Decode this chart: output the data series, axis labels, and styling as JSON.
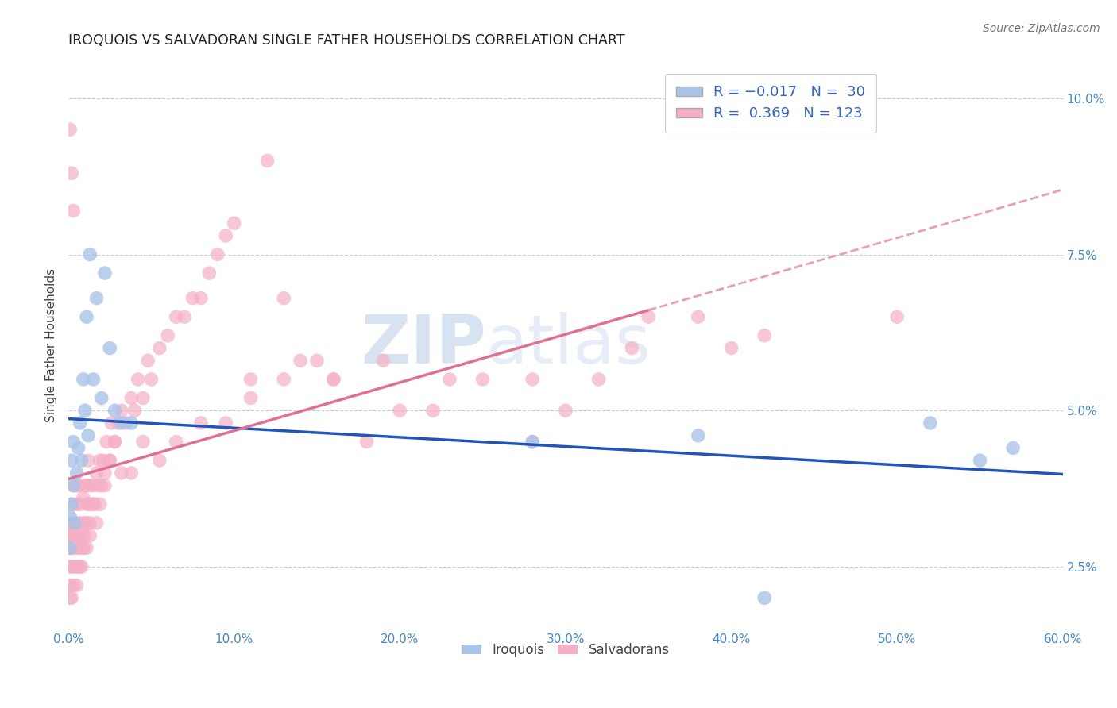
{
  "title": "IROQUOIS VS SALVADORAN SINGLE FATHER HOUSEHOLDS CORRELATION CHART",
  "source": "Source: ZipAtlas.com",
  "ylabel": "Single Father Households",
  "xlim": [
    0.0,
    0.6
  ],
  "ylim": [
    0.015,
    0.106
  ],
  "watermark_zip": "ZIP",
  "watermark_atlas": "atlas",
  "legend_line1": "R = -0.017   N =  30",
  "legend_line2": "R =  0.369   N = 123",
  "color_iroquois": "#a8c4e8",
  "color_salvadoran": "#f5b0c5",
  "color_iroquois_line": "#2255bb",
  "color_salvadoran_solid": "#e07090",
  "color_salvadoran_dashed": "#e8a0b0",
  "background_color": "#ffffff",
  "grid_color": "#cccccc",
  "tick_color": "#4488cc",
  "iroquois_x": [
    0.001,
    0.001,
    0.002,
    0.002,
    0.003,
    0.003,
    0.004,
    0.005,
    0.006,
    0.007,
    0.008,
    0.009,
    0.01,
    0.011,
    0.012,
    0.013,
    0.015,
    0.017,
    0.02,
    0.022,
    0.025,
    0.028,
    0.032,
    0.038,
    0.28,
    0.38,
    0.42,
    0.52,
    0.55,
    0.57
  ],
  "iroquois_y": [
    0.033,
    0.028,
    0.035,
    0.042,
    0.038,
    0.045,
    0.032,
    0.04,
    0.044,
    0.048,
    0.042,
    0.055,
    0.05,
    0.065,
    0.046,
    0.075,
    0.055,
    0.068,
    0.052,
    0.072,
    0.06,
    0.05,
    0.048,
    0.048,
    0.045,
    0.046,
    0.02,
    0.048,
    0.042,
    0.044
  ],
  "salvadoran_x": [
    0.001,
    0.001,
    0.001,
    0.001,
    0.001,
    0.002,
    0.002,
    0.002,
    0.003,
    0.003,
    0.003,
    0.004,
    0.004,
    0.005,
    0.005,
    0.005,
    0.006,
    0.006,
    0.007,
    0.007,
    0.008,
    0.008,
    0.009,
    0.009,
    0.01,
    0.01,
    0.011,
    0.011,
    0.012,
    0.012,
    0.013,
    0.013,
    0.014,
    0.015,
    0.016,
    0.017,
    0.018,
    0.019,
    0.02,
    0.021,
    0.022,
    0.023,
    0.025,
    0.026,
    0.028,
    0.03,
    0.032,
    0.035,
    0.038,
    0.04,
    0.042,
    0.045,
    0.048,
    0.05,
    0.055,
    0.06,
    0.065,
    0.07,
    0.075,
    0.08,
    0.085,
    0.09,
    0.095,
    0.1,
    0.11,
    0.12,
    0.13,
    0.14,
    0.15,
    0.16,
    0.18,
    0.2,
    0.22,
    0.25,
    0.28,
    0.3,
    0.32,
    0.35,
    0.38,
    0.4,
    0.001,
    0.001,
    0.002,
    0.002,
    0.003,
    0.003,
    0.004,
    0.005,
    0.005,
    0.006,
    0.006,
    0.007,
    0.008,
    0.009,
    0.01,
    0.011,
    0.012,
    0.013,
    0.015,
    0.017,
    0.019,
    0.022,
    0.025,
    0.028,
    0.032,
    0.038,
    0.045,
    0.055,
    0.065,
    0.08,
    0.095,
    0.11,
    0.13,
    0.16,
    0.19,
    0.23,
    0.28,
    0.34,
    0.42,
    0.5,
    0.001,
    0.002,
    0.003
  ],
  "salvadoran_y": [
    0.02,
    0.022,
    0.025,
    0.028,
    0.032,
    0.02,
    0.025,
    0.03,
    0.022,
    0.028,
    0.032,
    0.025,
    0.03,
    0.022,
    0.028,
    0.035,
    0.025,
    0.032,
    0.028,
    0.035,
    0.025,
    0.032,
    0.028,
    0.036,
    0.03,
    0.038,
    0.032,
    0.038,
    0.035,
    0.042,
    0.032,
    0.038,
    0.035,
    0.038,
    0.035,
    0.04,
    0.038,
    0.042,
    0.038,
    0.042,
    0.04,
    0.045,
    0.042,
    0.048,
    0.045,
    0.048,
    0.05,
    0.048,
    0.052,
    0.05,
    0.055,
    0.052,
    0.058,
    0.055,
    0.06,
    0.062,
    0.065,
    0.065,
    0.068,
    0.068,
    0.072,
    0.075,
    0.078,
    0.08,
    0.055,
    0.09,
    0.068,
    0.058,
    0.058,
    0.055,
    0.045,
    0.05,
    0.05,
    0.055,
    0.045,
    0.05,
    0.055,
    0.065,
    0.065,
    0.06,
    0.03,
    0.032,
    0.028,
    0.035,
    0.03,
    0.038,
    0.032,
    0.025,
    0.038,
    0.03,
    0.038,
    0.025,
    0.03,
    0.028,
    0.032,
    0.028,
    0.035,
    0.03,
    0.035,
    0.032,
    0.035,
    0.038,
    0.042,
    0.045,
    0.04,
    0.04,
    0.045,
    0.042,
    0.045,
    0.048,
    0.048,
    0.052,
    0.055,
    0.055,
    0.058,
    0.055,
    0.055,
    0.06,
    0.062,
    0.065,
    0.095,
    0.088,
    0.082
  ]
}
